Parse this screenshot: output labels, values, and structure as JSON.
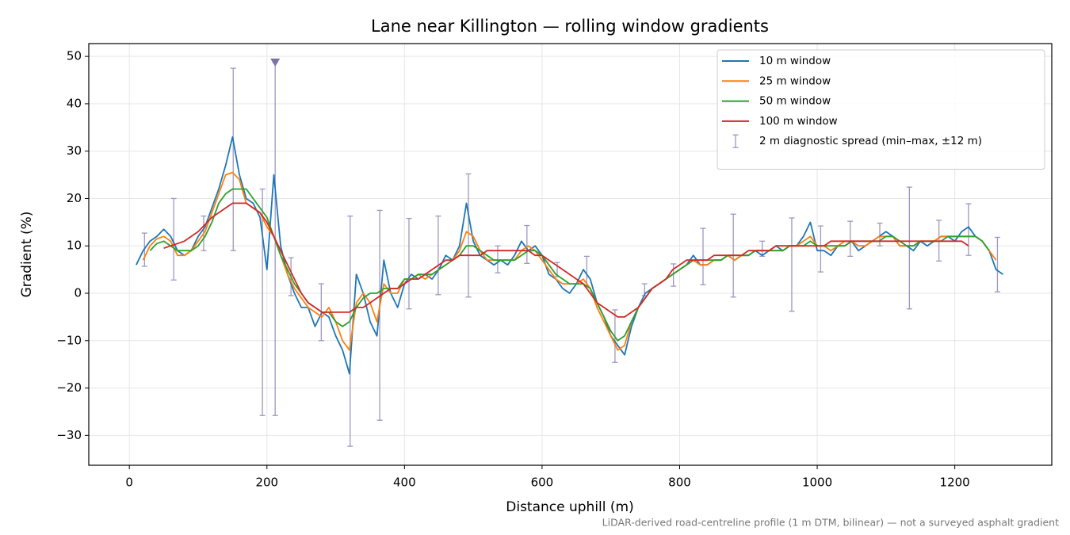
{
  "chart_data": {
    "type": "line",
    "title": "Lane near Killington — rolling window gradients",
    "x_label": "Distance uphill (m)",
    "y_label": "Gradient (%)",
    "footnote": "LiDAR-derived road-centreline profile (1 m DTM, bilinear) — not a surveyed asphalt gradient",
    "xlim": [
      -59,
      1341
    ],
    "ylim": [
      -36.3,
      52.7
    ],
    "xticks": [
      0,
      200,
      400,
      600,
      800,
      1000,
      1200
    ],
    "yticks": [
      {
        "value": -30,
        "label": "−30"
      },
      {
        "value": -20,
        "label": "−20"
      },
      {
        "value": -10,
        "label": "−10"
      },
      0,
      10,
      20,
      30,
      40,
      50
    ],
    "grid": true,
    "legend": "upper right",
    "x": [
      0,
      10,
      20,
      30,
      40,
      50,
      60,
      70,
      80,
      90,
      100,
      110,
      120,
      130,
      140,
      150,
      160,
      170,
      180,
      190,
      200,
      210,
      220,
      230,
      240,
      250,
      260,
      270,
      280,
      290,
      300,
      310,
      320,
      330,
      340,
      350,
      360,
      370,
      380,
      390,
      400,
      410,
      420,
      430,
      440,
      450,
      460,
      470,
      480,
      490,
      500,
      510,
      520,
      530,
      540,
      550,
      560,
      570,
      580,
      590,
      600,
      610,
      620,
      630,
      640,
      650,
      660,
      670,
      680,
      690,
      700,
      710,
      720,
      730,
      740,
      750,
      760,
      770,
      780,
      790,
      800,
      810,
      820,
      830,
      840,
      850,
      860,
      870,
      880,
      890,
      900,
      910,
      920,
      930,
      940,
      950,
      960,
      970,
      980,
      990,
      1000,
      1010,
      1020,
      1030,
      1040,
      1050,
      1060,
      1070,
      1080,
      1090,
      1100,
      1110,
      1120,
      1130,
      1140,
      1150,
      1160,
      1170,
      1180,
      1190,
      1200,
      1210,
      1220,
      1230,
      1240,
      1250,
      1260,
      1270
    ],
    "series": [
      {
        "name": "10 m window",
        "color": "#1f77b4",
        "values": [
          null,
          6,
          9,
          11,
          12,
          13.5,
          12,
          9,
          8,
          9,
          12,
          14,
          18,
          22,
          27,
          33,
          25,
          20,
          19,
          16,
          5,
          25,
          10,
          4,
          0,
          -3,
          -3,
          -7,
          -4,
          -5,
          -9,
          -12,
          -17,
          4,
          0,
          -6,
          -9,
          7,
          0,
          -3,
          2,
          4,
          3,
          4,
          3,
          5,
          8,
          7,
          10,
          19,
          11,
          8,
          7,
          6,
          7,
          6,
          8,
          11,
          9,
          10,
          8,
          4,
          3,
          1,
          0,
          2,
          5,
          3,
          -2,
          -5,
          -9,
          -11,
          -13,
          -7,
          -3,
          0,
          1,
          2,
          3,
          4,
          5,
          6,
          8,
          6,
          6,
          7,
          7,
          8,
          7,
          8,
          8,
          9,
          8,
          9,
          10,
          9,
          10,
          10,
          12,
          15,
          9,
          9,
          8,
          10,
          10,
          11,
          9,
          10,
          11,
          12,
          13,
          12,
          10,
          10,
          9,
          11,
          10,
          11,
          12,
          12,
          11,
          13,
          14,
          12,
          11,
          9,
          5,
          4
        ]
      },
      {
        "name": "25 m window",
        "color": "#ff7f0e",
        "values": [
          null,
          null,
          7,
          10,
          11.5,
          12,
          11,
          8,
          8,
          9,
          11,
          13,
          17,
          21,
          25,
          25.5,
          24,
          19,
          18,
          17,
          14,
          12,
          8,
          4,
          1,
          -1,
          -3,
          -4,
          -5,
          -3,
          -6,
          -10,
          -12,
          -2,
          0,
          -2,
          -6,
          2,
          0,
          0,
          3,
          3,
          4,
          3,
          4,
          5,
          6,
          7,
          9,
          13,
          12,
          9,
          7,
          7,
          7,
          7,
          7,
          9,
          10,
          9,
          7,
          5,
          3,
          2,
          2,
          2,
          3,
          1,
          -3,
          -6,
          -9,
          -12,
          -11,
          -6,
          -3,
          -1,
          1,
          2,
          3,
          4,
          5,
          6,
          7,
          6,
          6,
          7,
          7,
          8,
          7,
          8,
          8,
          9,
          9,
          9,
          9,
          9,
          10,
          10,
          11,
          12,
          10,
          10,
          9,
          10,
          11,
          11,
          10,
          10,
          11,
          12,
          12,
          12,
          10,
          10,
          10,
          11,
          11,
          11,
          12,
          12,
          12,
          12,
          12,
          12,
          11,
          9,
          7,
          null
        ]
      },
      {
        "name": "50 m window",
        "color": "#2ca02c",
        "values": [
          null,
          null,
          null,
          9,
          10.5,
          11,
          10,
          9,
          9,
          9,
          10,
          12,
          15,
          19,
          21,
          22,
          22,
          22,
          20,
          18,
          16,
          12,
          8,
          5,
          2,
          0,
          -2,
          -3,
          -4,
          -4,
          -6,
          -7,
          -6,
          -3,
          -1,
          0,
          0,
          1,
          1,
          1,
          3,
          3,
          4,
          4,
          4,
          5,
          6,
          7,
          8,
          10,
          10,
          9,
          8,
          7,
          7,
          7,
          7,
          8,
          9,
          9,
          8,
          6,
          4,
          3,
          2,
          2,
          2,
          1,
          -2,
          -5,
          -8,
          -10,
          -9,
          -6,
          -3,
          -1,
          1,
          2,
          3,
          4,
          5,
          6,
          7,
          7,
          7,
          7,
          7,
          8,
          8,
          8,
          8,
          9,
          9,
          9,
          9,
          9,
          10,
          10,
          10,
          11,
          10,
          10,
          10,
          10,
          10,
          11,
          11,
          11,
          11,
          11,
          12,
          12,
          11,
          10,
          10,
          11,
          11,
          11,
          11,
          12,
          12,
          12,
          12,
          12,
          11,
          9,
          null,
          null
        ]
      },
      {
        "name": "100 m window",
        "color": "#d62728",
        "values": [
          null,
          null,
          null,
          null,
          null,
          9.5,
          10,
          10.5,
          11,
          12,
          13,
          14.5,
          16,
          17,
          18,
          19,
          19,
          19,
          18,
          17,
          15,
          12,
          9,
          6,
          3,
          0,
          -2,
          -3,
          -4,
          -4,
          -4,
          -4,
          -4,
          -3,
          -3,
          -2,
          -1,
          0,
          1,
          1,
          2,
          3,
          3,
          4,
          5,
          6,
          7,
          7,
          8,
          8,
          8,
          8,
          9,
          9,
          9,
          9,
          9,
          9,
          9,
          8,
          8,
          7,
          6,
          5,
          4,
          3,
          2,
          0,
          -2,
          -3,
          -4,
          -5,
          -5,
          -4,
          -3,
          -1,
          1,
          2,
          3,
          5,
          6,
          7,
          7,
          7,
          7,
          8,
          8,
          8,
          8,
          8,
          9,
          9,
          9,
          9,
          10,
          10,
          10,
          10,
          10,
          10,
          10,
          10,
          11,
          11,
          11,
          11,
          11,
          11,
          11,
          11,
          11,
          11,
          11,
          11,
          11,
          11,
          11,
          11,
          11,
          11,
          11,
          11,
          10,
          null,
          null,
          null,
          null,
          null
        ]
      }
    ],
    "errorbars": {
      "name": "2 m diagnostic spread (min–max, ±12 m)",
      "color": "#9d97c2",
      "x": [
        22,
        64.5,
        108,
        151,
        193.5,
        212,
        235,
        279,
        321,
        364,
        406.5,
        449,
        493,
        535.5,
        578,
        622,
        665,
        706,
        749,
        791,
        834,
        878,
        920,
        963,
        1005,
        1048,
        1091,
        1134,
        1177,
        1220,
        1262
      ],
      "low": [
        5.7,
        2.8,
        9,
        9,
        -25.8,
        -25.8,
        -0.5,
        -10,
        -32.3,
        -26.8,
        -3.3,
        -0.3,
        -0.8,
        4.3,
        6.3,
        3.5,
        1.5,
        -14.6,
        -0.5,
        1.5,
        1.8,
        -0.8,
        7.8,
        -3.8,
        4.5,
        7.8,
        10,
        -3.3,
        6.8,
        8,
        0.3
      ],
      "high": [
        12.7,
        20,
        16.3,
        47.5,
        22,
        48.7,
        7.5,
        2,
        16.3,
        17.5,
        15.8,
        16.3,
        25.2,
        10,
        14.3,
        6.5,
        7.8,
        -3.5,
        2,
        6.2,
        13.7,
        16.7,
        11,
        15.9,
        14.2,
        15.2,
        14.8,
        22.4,
        15.4,
        18.9,
        11.8
      ]
    },
    "overflow_marker": {
      "x": 212,
      "y": 48.7,
      "color": "#7b72a5"
    }
  }
}
